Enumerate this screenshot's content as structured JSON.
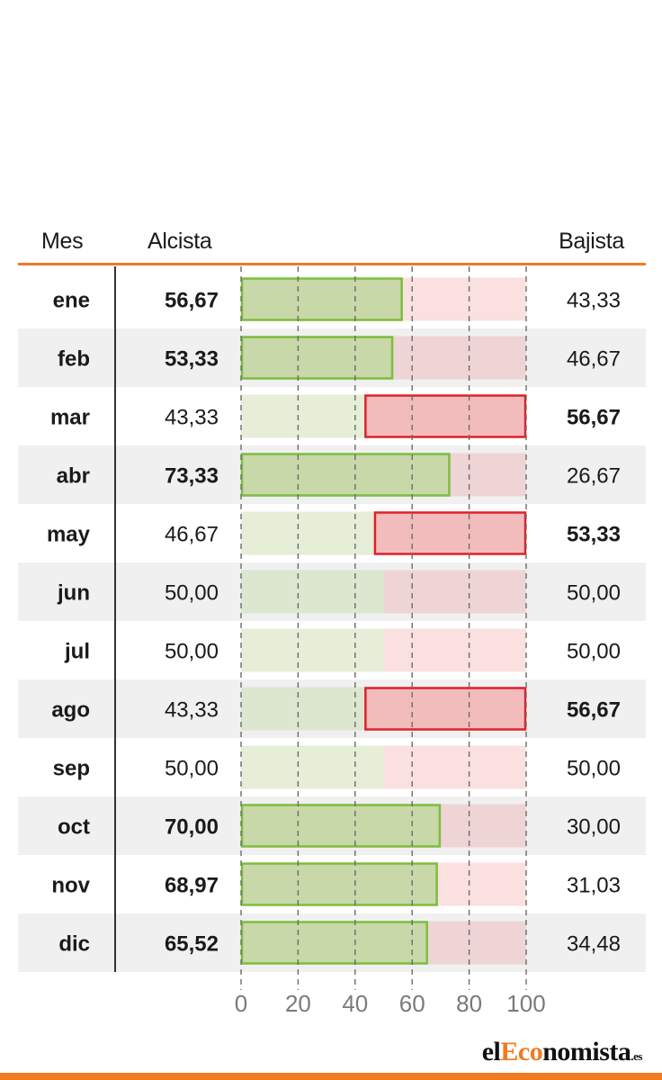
{
  "header": {
    "mes": "Mes",
    "alcista": "Alcista",
    "bajista": "Bajista"
  },
  "colors": {
    "green_fill": "#c8d8a8",
    "green_fill_light": "#e6eed8",
    "green_fill_mid": "#dde6cf",
    "green_stroke": "#7dbe3c",
    "red_fill": "#f2bcbc",
    "red_fill_light": "#fbe0e0",
    "red_fill_mid": "#efd4d6",
    "red_stroke": "#e0202a",
    "row_alt": "#f0f0f0",
    "accent": "#f07b23"
  },
  "chart_data": {
    "type": "bar",
    "categories": [
      "ene",
      "feb",
      "mar",
      "abr",
      "may",
      "jun",
      "jul",
      "ago",
      "sep",
      "oct",
      "nov",
      "dic"
    ],
    "series": [
      {
        "name": "Alcista",
        "values": [
          56.67,
          53.33,
          43.33,
          73.33,
          46.67,
          50.0,
          50.0,
          43.33,
          50.0,
          70.0,
          68.97,
          65.52
        ],
        "labels": [
          "56,67",
          "53,33",
          "43,33",
          "73,33",
          "46,67",
          "50,00",
          "50,00",
          "43,33",
          "50,00",
          "70,00",
          "68,97",
          "65,52"
        ]
      },
      {
        "name": "Bajista",
        "values": [
          43.33,
          46.67,
          56.67,
          26.67,
          53.33,
          50.0,
          50.0,
          56.67,
          50.0,
          30.0,
          31.03,
          34.48
        ],
        "labels": [
          "43,33",
          "46,67",
          "56,67",
          "26,67",
          "53,33",
          "50,00",
          "50,00",
          "56,67",
          "50,00",
          "30,00",
          "31,03",
          "34,48"
        ]
      }
    ],
    "xlim": [
      0,
      100
    ],
    "xticks": [
      0,
      20,
      40,
      60,
      80,
      100
    ],
    "grid": true,
    "stacked": true
  },
  "logo": {
    "part1": "el",
    "part2": "Eco",
    "part3": "nomista",
    "tld": ".es"
  }
}
